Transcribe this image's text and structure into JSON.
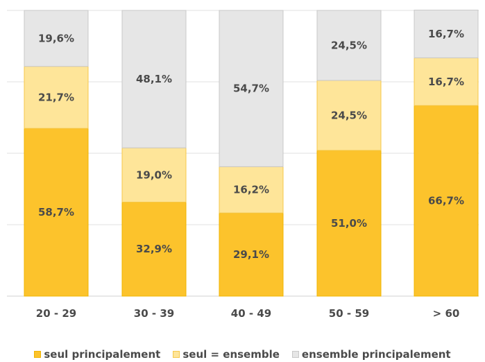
{
  "chart_data": {
    "type": "bar",
    "stacked": true,
    "percent_stacked": true,
    "categories": [
      "20 - 29",
      "30 - 39",
      "40 - 49",
      "50 - 59",
      "> 60"
    ],
    "series": [
      {
        "name": "seul principalement",
        "color": "#FCC32C",
        "values": [
          58.7,
          32.9,
          29.1,
          51.0,
          66.7
        ],
        "labels": [
          "58,7%",
          "32,9%",
          "29,1%",
          "51,0%",
          "66,7%"
        ]
      },
      {
        "name": "seul = ensemble",
        "color": "#FEE599",
        "values": [
          21.7,
          19.0,
          16.2,
          24.5,
          16.7
        ],
        "labels": [
          "21,7%",
          "19,0%",
          "16,2%",
          "24,5%",
          "16,7%"
        ]
      },
      {
        "name": "ensemble principalement",
        "color": "#E6E6E6",
        "values": [
          19.6,
          48.1,
          54.7,
          24.5,
          16.7
        ],
        "labels": [
          "19,6%",
          "48,1%",
          "54,7%",
          "24,5%",
          "16,7%"
        ]
      }
    ],
    "ylim": [
      0,
      100
    ],
    "grid": true,
    "legend_position": "bottom"
  }
}
